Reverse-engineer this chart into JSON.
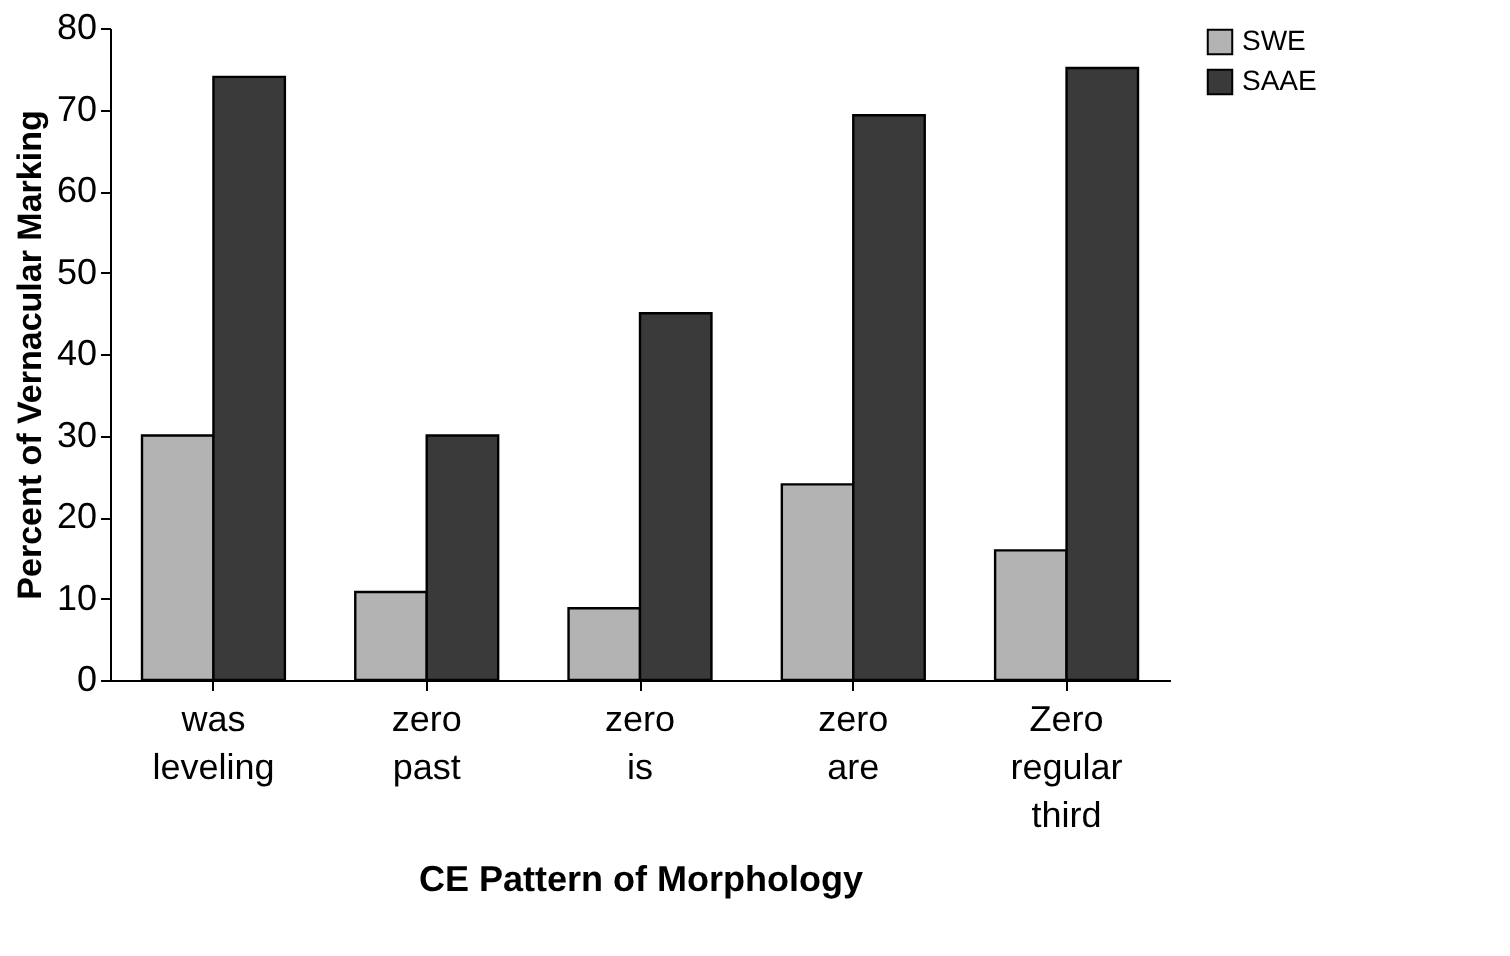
{
  "chart_data": {
    "type": "bar",
    "xlabel": "CE Pattern of Morphology",
    "ylabel": "Percent of Vernacular Marking",
    "categories": [
      "was leveling",
      "zero past",
      "zero is",
      "zero are",
      "Zero regular third"
    ],
    "series": [
      {
        "name": "SWE",
        "color": "#b3b3b3",
        "values": [
          30,
          10.8,
          8.8,
          24,
          15.9
        ]
      },
      {
        "name": "SAAE",
        "color": "#3a3a3a",
        "values": [
          74,
          30,
          45,
          69.3,
          75.1
        ]
      }
    ],
    "ylim": [
      0,
      80
    ],
    "yticks": [
      0,
      10,
      20,
      30,
      40,
      50,
      60,
      70,
      80
    ],
    "grid": false,
    "legend": "right"
  }
}
